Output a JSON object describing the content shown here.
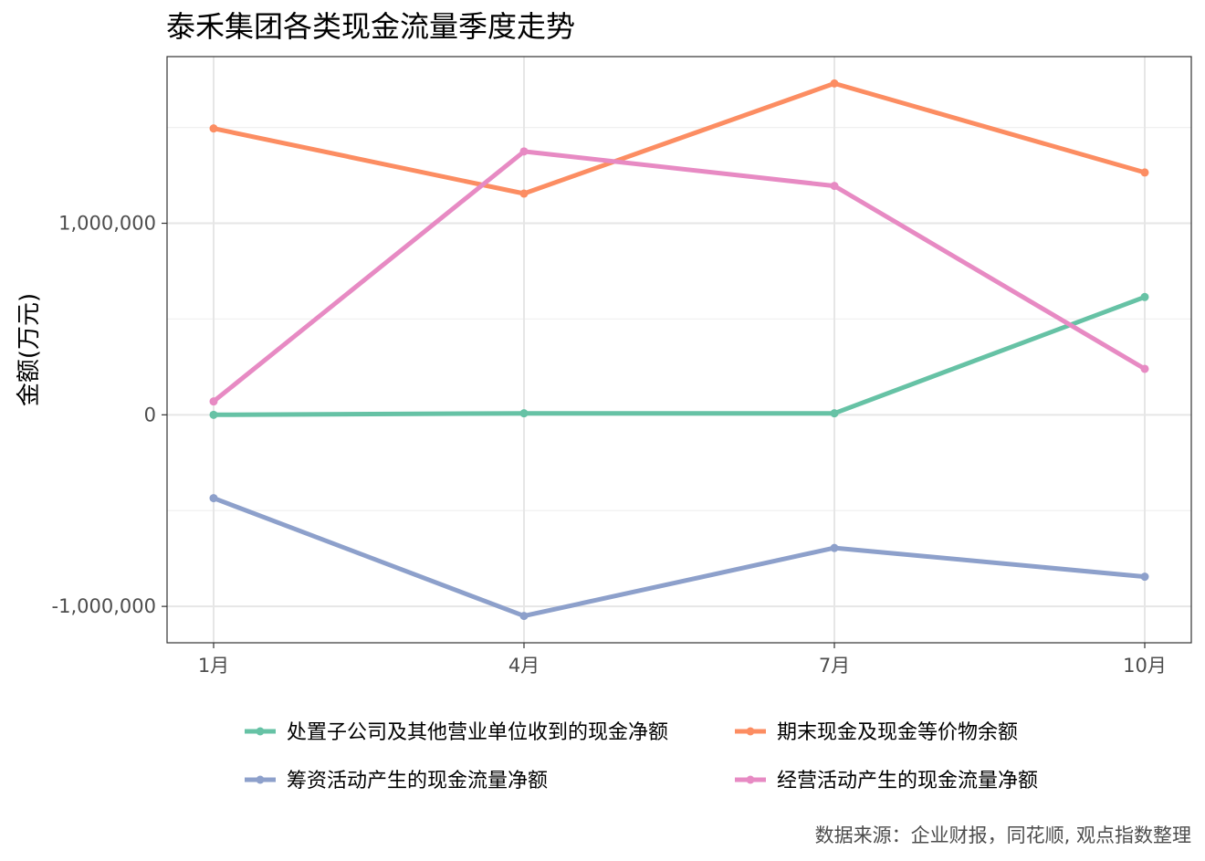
{
  "chart_data": {
    "type": "line",
    "title": "泰禾集团各类现金流量季度走势",
    "xlabel": "",
    "ylabel": "金额(万元)",
    "categories": [
      "1月",
      "4月",
      "7月",
      "10月"
    ],
    "x": [
      1,
      4,
      7,
      10
    ],
    "ylim": [
      -1190000,
      1870000
    ],
    "yticks": [
      -1000000,
      0,
      1000000
    ],
    "ytick_labels": [
      "-1,000,000",
      "0",
      "1,000,000"
    ],
    "grid": true,
    "legend_position": "bottom",
    "series": [
      {
        "name": "处置子公司及其他营业单位收到的现金净额",
        "color": "#66c2a5",
        "values": [
          0,
          8000,
          8000,
          615000
        ]
      },
      {
        "name": "期末现金及现金等价物余额",
        "color": "#fc8d62",
        "values": [
          1495000,
          1155000,
          1730000,
          1265000
        ]
      },
      {
        "name": "筹资活动产生的现金流量净额",
        "color": "#8da0cb",
        "values": [
          -435000,
          -1050000,
          -695000,
          -845000
        ]
      },
      {
        "name": "经营活动产生的现金流量净额",
        "color": "#e78ac3",
        "values": [
          70000,
          1375000,
          1195000,
          240000
        ]
      }
    ]
  },
  "caption": "数据来源：企业财报，同花顺, 观点指数整理"
}
